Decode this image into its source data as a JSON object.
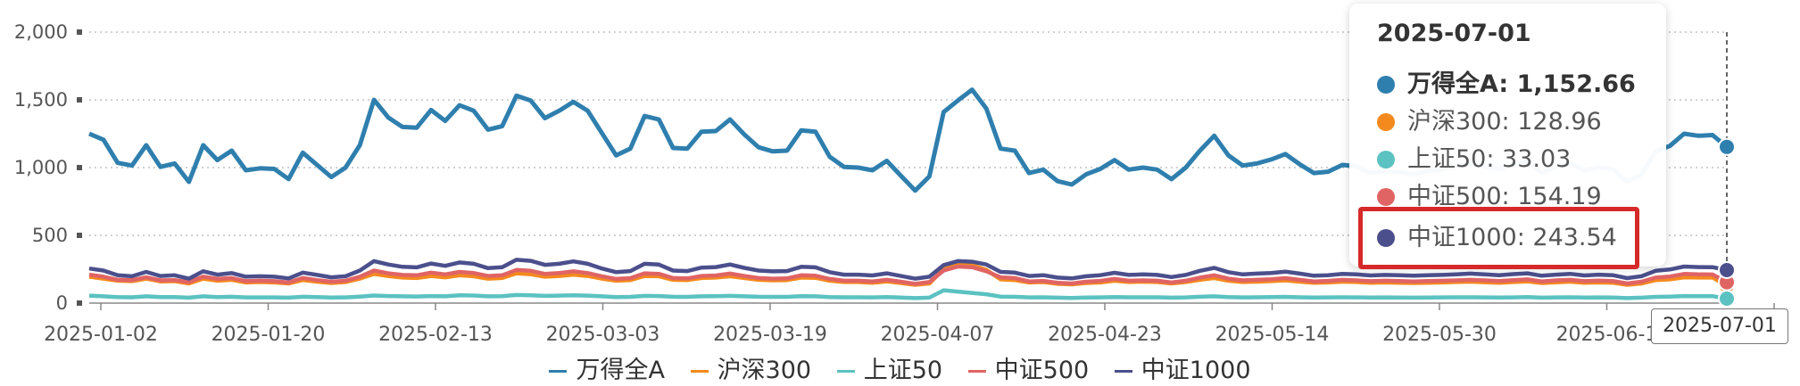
{
  "chart_data": {
    "type": "line",
    "title": "",
    "xlabel": "",
    "ylabel": "",
    "ylim": [
      0,
      2000
    ],
    "y_ticks": [
      "0",
      "500",
      "1,000",
      "1,500",
      "2,000"
    ],
    "x_tick_labels": [
      "2025-01-02",
      "2025-01-20",
      "2025-02-13",
      "2025-03-03",
      "2025-03-19",
      "2025-04-07",
      "2025-04-23",
      "2025-05-14",
      "2025-05-30",
      "2025-06-1",
      "2025-07-01"
    ],
    "grid": true,
    "legend_position": "bottom",
    "series": [
      {
        "name": "万得全A",
        "color": "#2f7fae",
        "values": [
          1250,
          1205,
          1035,
          1015,
          1165,
          1005,
          1030,
          895,
          1165,
          1055,
          1125,
          980,
          995,
          990,
          915,
          1110,
          1020,
          930,
          1000,
          1165,
          1500,
          1370,
          1300,
          1295,
          1425,
          1345,
          1460,
          1420,
          1280,
          1305,
          1530,
          1495,
          1365,
          1420,
          1485,
          1420,
          1255,
          1090,
          1140,
          1380,
          1355,
          1145,
          1140,
          1265,
          1270,
          1355,
          1245,
          1150,
          1120,
          1125,
          1275,
          1265,
          1080,
          1005,
          1000,
          980,
          1050,
          940,
          830,
          935,
          1410,
          1495,
          1575,
          1435,
          1140,
          1125,
          960,
          985,
          900,
          875,
          950,
          990,
          1055,
          985,
          1000,
          985,
          915,
          1000,
          1125,
          1235,
          1090,
          1015,
          1030,
          1060,
          1100,
          1025,
          960,
          970,
          1020,
          1010,
          960,
          975,
          965,
          950,
          975,
          985,
          1010,
          1030,
          1005,
          990,
          1020,
          1050,
          960,
          1005,
          1030,
          980,
          1000,
          990,
          895,
          950,
          1120,
          1160,
          1250,
          1235,
          1240,
          1152.66
        ]
      },
      {
        "name": "沪深300",
        "color": "#f48a1d",
        "values": [
          195,
          180,
          165,
          162,
          180,
          160,
          162,
          145,
          180,
          165,
          172,
          152,
          155,
          152,
          145,
          170,
          158,
          148,
          155,
          180,
          215,
          200,
          188,
          185,
          200,
          190,
          205,
          198,
          180,
          185,
          220,
          213,
          195,
          200,
          210,
          200,
          180,
          165,
          170,
          200,
          198,
          172,
          170,
          185,
          188,
          198,
          185,
          172,
          168,
          170,
          188,
          186,
          165,
          155,
          155,
          150,
          160,
          148,
          135,
          145,
          250,
          300,
          280,
          245,
          175,
          170,
          152,
          155,
          142,
          138,
          148,
          152,
          165,
          155,
          158,
          155,
          145,
          155,
          172,
          185,
          165,
          155,
          158,
          162,
          168,
          158,
          150,
          152,
          158,
          155,
          150,
          152,
          150,
          148,
          150,
          152,
          155,
          158,
          154,
          150,
          155,
          160,
          148,
          153,
          158,
          150,
          152,
          150,
          135,
          145,
          170,
          175,
          190,
          188,
          189,
          128.96
        ]
      },
      {
        "name": "上证50",
        "color": "#5bc2c1",
        "values": [
          55,
          50,
          44,
          43,
          50,
          44,
          44,
          40,
          50,
          45,
          47,
          42,
          42,
          42,
          40,
          47,
          44,
          41,
          42,
          48,
          56,
          52,
          50,
          49,
          52,
          50,
          58,
          56,
          50,
          51,
          60,
          58,
          53,
          55,
          57,
          55,
          50,
          45,
          46,
          53,
          52,
          47,
          46,
          50,
          51,
          53,
          50,
          47,
          46,
          46,
          51,
          50,
          45,
          43,
          43,
          42,
          44,
          41,
          37,
          40,
          95,
          85,
          75,
          65,
          48,
          47,
          42,
          43,
          40,
          38,
          41,
          42,
          45,
          43,
          43,
          43,
          40,
          42,
          47,
          50,
          45,
          42,
          43,
          44,
          46,
          43,
          41,
          42,
          43,
          42,
          41,
          42,
          41,
          40,
          41,
          42,
          43,
          43,
          42,
          41,
          42,
          44,
          40,
          42,
          43,
          41,
          42,
          41,
          37,
          40,
          46,
          48,
          52,
          51,
          51,
          33.03
        ]
      },
      {
        "name": "中证500",
        "color": "#e06464",
        "values": [
          210,
          195,
          172,
          170,
          190,
          168,
          170,
          155,
          195,
          178,
          185,
          162,
          165,
          162,
          152,
          185,
          170,
          158,
          165,
          195,
          240,
          220,
          208,
          205,
          225,
          212,
          230,
          222,
          200,
          205,
          245,
          238,
          215,
          222,
          235,
          222,
          198,
          178,
          184,
          220,
          216,
          185,
          182,
          200,
          204,
          218,
          200,
          185,
          180,
          182,
          205,
          202,
          178,
          165,
          165,
          160,
          172,
          158,
          142,
          155,
          240,
          270,
          265,
          235,
          190,
          185,
          160,
          164,
          150,
          145,
          158,
          164,
          178,
          165,
          168,
          165,
          152,
          165,
          188,
          205,
          180,
          168,
          172,
          176,
          184,
          172,
          160,
          164,
          172,
          168,
          162,
          165,
          163,
          160,
          163,
          165,
          168,
          172,
          168,
          163,
          170,
          175,
          160,
          168,
          172,
          162,
          166,
          163,
          145,
          158,
          188,
          196,
          215,
          212,
          211,
          154.19
        ]
      },
      {
        "name": "中证1000",
        "color": "#4b4f8c",
        "values": [
          255,
          240,
          205,
          198,
          230,
          200,
          205,
          180,
          235,
          210,
          222,
          195,
          198,
          195,
          182,
          225,
          208,
          190,
          198,
          240,
          310,
          285,
          268,
          264,
          292,
          275,
          300,
          290,
          258,
          265,
          320,
          312,
          282,
          290,
          308,
          290,
          255,
          228,
          236,
          290,
          284,
          240,
          236,
          262,
          266,
          285,
          260,
          240,
          234,
          236,
          268,
          264,
          228,
          210,
          210,
          204,
          220,
          200,
          180,
          195,
          280,
          310,
          305,
          285,
          230,
          225,
          200,
          206,
          188,
          182,
          198,
          206,
          224,
          208,
          212,
          208,
          192,
          208,
          238,
          260,
          228,
          212,
          218,
          222,
          232,
          218,
          202,
          206,
          216,
          212,
          204,
          208,
          205,
          202,
          205,
          208,
          212,
          218,
          212,
          206,
          214,
          220,
          202,
          210,
          216,
          204,
          210,
          206,
          184,
          198,
          238,
          248,
          270,
          266,
          265,
          243.54
        ]
      }
    ]
  },
  "tooltip": {
    "date": "2025-07-01",
    "rows": [
      {
        "text": "万得全A: 1,152.66",
        "color": "#2f7fae"
      },
      {
        "text": "沪深300: 128.96",
        "color": "#f48a1d"
      },
      {
        "text": "上证50: 33.03",
        "color": "#5bc2c1"
      },
      {
        "text": "中证500: 154.19",
        "color": "#e06464"
      },
      {
        "text": "中证1000: 243.54",
        "color": "#4b4f8c"
      }
    ]
  },
  "axis_pointer_label": "2025-07-01"
}
